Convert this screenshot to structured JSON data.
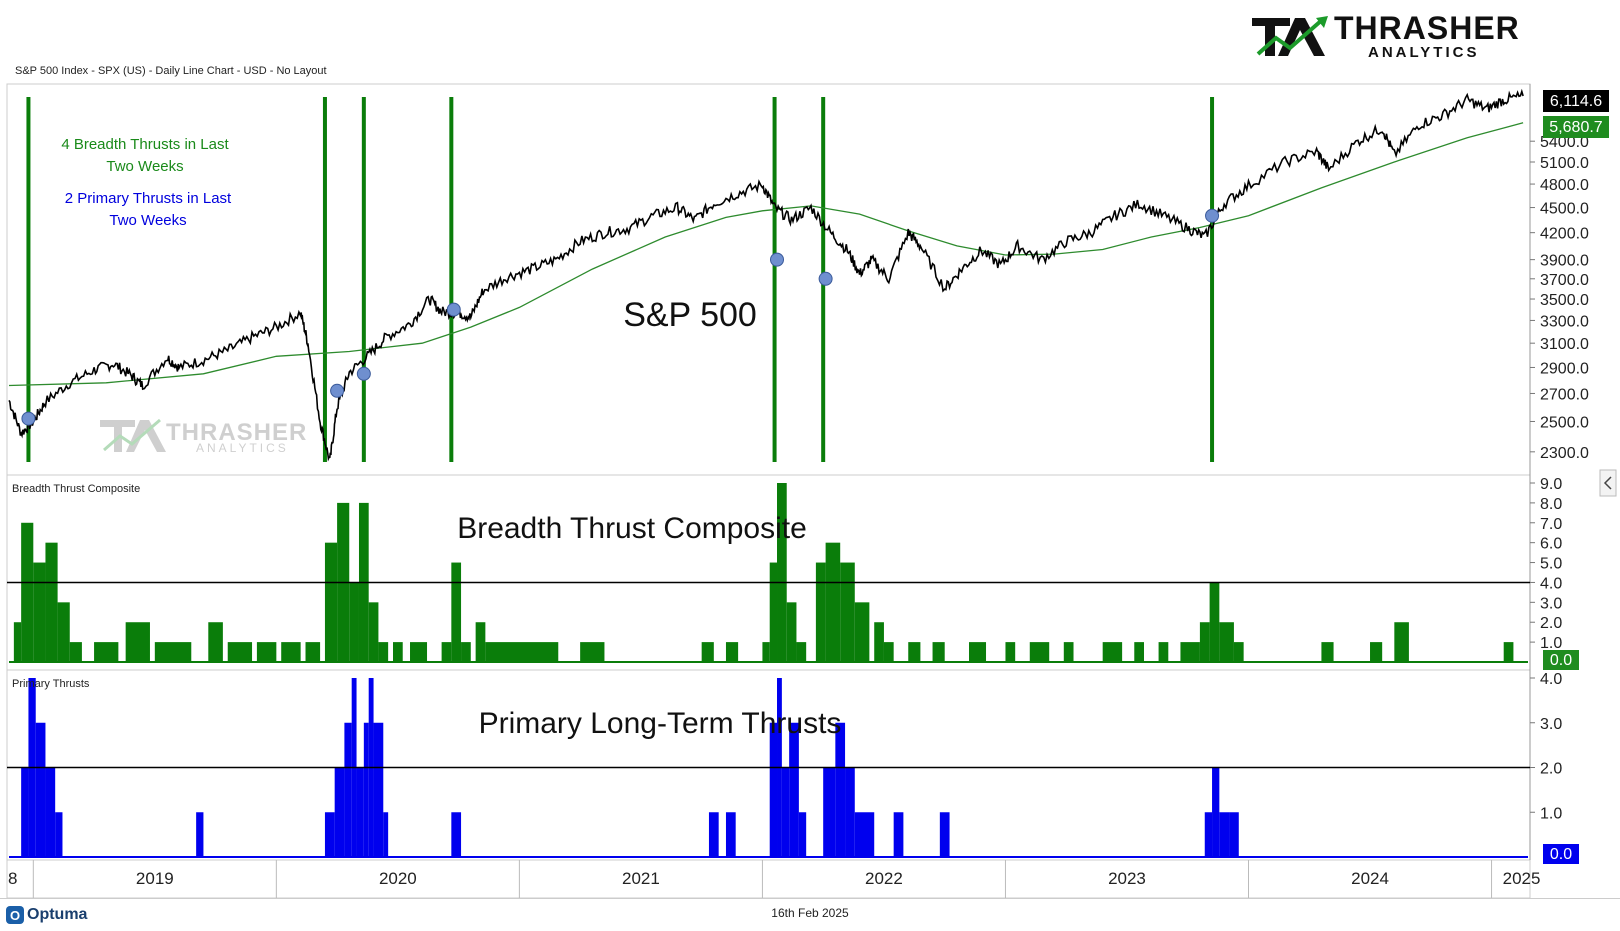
{
  "header": {
    "chart_caption": "S&P 500 Index - SPX (US) - Daily Line Chart - USD - No Layout",
    "logo_main": "THRASHER",
    "logo_sub": "ANALYTICS"
  },
  "footer": {
    "brand": "Optuma",
    "date": "16th Feb 2025"
  },
  "colors": {
    "price": "#000000",
    "ma": "#2e8b2e",
    "breadth": "#0a7d0a",
    "primary": "#0000ee",
    "thrust_line": "#0a7d0a",
    "marker": "#6f8fcf"
  },
  "chart_data": [
    {
      "type": "line",
      "panel": "S&P 500",
      "title": "S&P 500",
      "annotation_breadth": "4 Breadth Thrusts in Last Two Weeks",
      "annotation_primary": "2 Primary Thrusts in Last Two Weeks",
      "last_value": "6,114.6",
      "ma_value": "5,680.7",
      "yticks": [
        "5400.0",
        "5100.0",
        "4800.0",
        "4500.0",
        "4200.0",
        "3900.0",
        "3700.0",
        "3500.0",
        "3300.0",
        "3100.0",
        "2900.0",
        "2700.0",
        "2500.0",
        "2300.0"
      ],
      "ylim": [
        2200,
        6250
      ],
      "log_scale": true,
      "x_categories": [
        "2019",
        "2020",
        "2021",
        "2022",
        "2023",
        "2024",
        "2025"
      ],
      "price_series": [
        {
          "x": 2018.9,
          "y": 2650
        },
        {
          "x": 2018.95,
          "y": 2420
        },
        {
          "x": 2019.0,
          "y": 2500
        },
        {
          "x": 2019.05,
          "y": 2640
        },
        {
          "x": 2019.15,
          "y": 2780
        },
        {
          "x": 2019.25,
          "y": 2880
        },
        {
          "x": 2019.33,
          "y": 2930
        },
        {
          "x": 2019.4,
          "y": 2840
        },
        {
          "x": 2019.45,
          "y": 2760
        },
        {
          "x": 2019.55,
          "y": 2980
        },
        {
          "x": 2019.6,
          "y": 2900
        },
        {
          "x": 2019.7,
          "y": 2960
        },
        {
          "x": 2019.8,
          "y": 3040
        },
        {
          "x": 2019.9,
          "y": 3150
        },
        {
          "x": 2020.0,
          "y": 3240
        },
        {
          "x": 2020.1,
          "y": 3370
        },
        {
          "x": 2020.13,
          "y": 3100
        },
        {
          "x": 2020.18,
          "y": 2500
        },
        {
          "x": 2020.22,
          "y": 2240
        },
        {
          "x": 2020.25,
          "y": 2600
        },
        {
          "x": 2020.3,
          "y": 2860
        },
        {
          "x": 2020.38,
          "y": 3000
        },
        {
          "x": 2020.45,
          "y": 3150
        },
        {
          "x": 2020.55,
          "y": 3270
        },
        {
          "x": 2020.63,
          "y": 3500
        },
        {
          "x": 2020.68,
          "y": 3380
        },
        {
          "x": 2020.75,
          "y": 3370
        },
        {
          "x": 2020.8,
          "y": 3330
        },
        {
          "x": 2020.85,
          "y": 3580
        },
        {
          "x": 2020.95,
          "y": 3720
        },
        {
          "x": 2021.05,
          "y": 3800
        },
        {
          "x": 2021.15,
          "y": 3900
        },
        {
          "x": 2021.25,
          "y": 4100
        },
        {
          "x": 2021.35,
          "y": 4200
        },
        {
          "x": 2021.45,
          "y": 4250
        },
        {
          "x": 2021.55,
          "y": 4400
        },
        {
          "x": 2021.65,
          "y": 4500
        },
        {
          "x": 2021.72,
          "y": 4350
        },
        {
          "x": 2021.8,
          "y": 4550
        },
        {
          "x": 2021.9,
          "y": 4680
        },
        {
          "x": 2022.0,
          "y": 4790
        },
        {
          "x": 2022.05,
          "y": 4500
        },
        {
          "x": 2022.12,
          "y": 4350
        },
        {
          "x": 2022.2,
          "y": 4500
        },
        {
          "x": 2022.28,
          "y": 4200
        },
        {
          "x": 2022.35,
          "y": 4000
        },
        {
          "x": 2022.4,
          "y": 3750
        },
        {
          "x": 2022.45,
          "y": 3900
        },
        {
          "x": 2022.52,
          "y": 3700
        },
        {
          "x": 2022.6,
          "y": 4200
        },
        {
          "x": 2022.65,
          "y": 4050
        },
        {
          "x": 2022.75,
          "y": 3600
        },
        {
          "x": 2022.82,
          "y": 3800
        },
        {
          "x": 2022.9,
          "y": 4000
        },
        {
          "x": 2022.98,
          "y": 3840
        },
        {
          "x": 2023.05,
          "y": 4050
        },
        {
          "x": 2023.15,
          "y": 3900
        },
        {
          "x": 2023.25,
          "y": 4100
        },
        {
          "x": 2023.35,
          "y": 4200
        },
        {
          "x": 2023.45,
          "y": 4400
        },
        {
          "x": 2023.55,
          "y": 4550
        },
        {
          "x": 2023.65,
          "y": 4400
        },
        {
          "x": 2023.75,
          "y": 4250
        },
        {
          "x": 2023.82,
          "y": 4150
        },
        {
          "x": 2023.9,
          "y": 4550
        },
        {
          "x": 2024.0,
          "y": 4780
        },
        {
          "x": 2024.15,
          "y": 5100
        },
        {
          "x": 2024.28,
          "y": 5250
        },
        {
          "x": 2024.33,
          "y": 5000
        },
        {
          "x": 2024.45,
          "y": 5400
        },
        {
          "x": 2024.55,
          "y": 5600
        },
        {
          "x": 2024.6,
          "y": 5200
        },
        {
          "x": 2024.7,
          "y": 5650
        },
        {
          "x": 2024.8,
          "y": 5800
        },
        {
          "x": 2024.9,
          "y": 6050
        },
        {
          "x": 2024.98,
          "y": 5900
        },
        {
          "x": 2025.05,
          "y": 6050
        },
        {
          "x": 2025.13,
          "y": 6114.6
        }
      ],
      "ma_series": [
        {
          "x": 2018.9,
          "y": 2760
        },
        {
          "x": 2019.3,
          "y": 2780
        },
        {
          "x": 2019.7,
          "y": 2850
        },
        {
          "x": 2020.0,
          "y": 2990
        },
        {
          "x": 2020.3,
          "y": 3030
        },
        {
          "x": 2020.6,
          "y": 3100
        },
        {
          "x": 2020.8,
          "y": 3240
        },
        {
          "x": 2021.0,
          "y": 3420
        },
        {
          "x": 2021.3,
          "y": 3800
        },
        {
          "x": 2021.6,
          "y": 4150
        },
        {
          "x": 2021.85,
          "y": 4380
        },
        {
          "x": 2022.0,
          "y": 4460
        },
        {
          "x": 2022.2,
          "y": 4520
        },
        {
          "x": 2022.4,
          "y": 4420
        },
        {
          "x": 2022.6,
          "y": 4220
        },
        {
          "x": 2022.8,
          "y": 4050
        },
        {
          "x": 2023.0,
          "y": 3950
        },
        {
          "x": 2023.2,
          "y": 3960
        },
        {
          "x": 2023.4,
          "y": 4010
        },
        {
          "x": 2023.6,
          "y": 4150
        },
        {
          "x": 2023.8,
          "y": 4260
        },
        {
          "x": 2024.0,
          "y": 4400
        },
        {
          "x": 2024.3,
          "y": 4750
        },
        {
          "x": 2024.6,
          "y": 5100
        },
        {
          "x": 2024.9,
          "y": 5450
        },
        {
          "x": 2025.13,
          "y": 5680.7
        }
      ],
      "thrust_lines_x": [
        2018.98,
        2020.2,
        2020.36,
        2020.72,
        2022.05,
        2022.25,
        2023.85
      ],
      "markers": [
        {
          "x": 2018.98,
          "y": 2520
        },
        {
          "x": 2020.25,
          "y": 2720
        },
        {
          "x": 2020.36,
          "y": 2850
        },
        {
          "x": 2020.73,
          "y": 3400
        },
        {
          "x": 2022.06,
          "y": 3900
        },
        {
          "x": 2022.26,
          "y": 3700
        },
        {
          "x": 2023.85,
          "y": 4400
        }
      ]
    },
    {
      "type": "bar",
      "panel": "Breadth Thrust Composite",
      "title": "Breadth Thrust Composite",
      "caption": "Breadth Thrust Composite",
      "last_value": "0.0",
      "yticks": [
        "9.0",
        "8.0",
        "7.0",
        "6.0",
        "5.0",
        "4.0",
        "3.0",
        "2.0",
        "1.0"
      ],
      "ylim": [
        0,
        9
      ],
      "threshold": 4.0,
      "bars": [
        {
          "x0": 2018.92,
          "x1": 2018.95,
          "y": 2
        },
        {
          "x0": 2018.95,
          "x1": 2019.0,
          "y": 7
        },
        {
          "x0": 2019.0,
          "x1": 2019.05,
          "y": 5
        },
        {
          "x0": 2019.05,
          "x1": 2019.1,
          "y": 6
        },
        {
          "x0": 2019.1,
          "x1": 2019.15,
          "y": 3
        },
        {
          "x0": 2019.15,
          "x1": 2019.2,
          "y": 1
        },
        {
          "x0": 2019.25,
          "x1": 2019.35,
          "y": 1
        },
        {
          "x0": 2019.38,
          "x1": 2019.48,
          "y": 2
        },
        {
          "x0": 2019.5,
          "x1": 2019.65,
          "y": 1
        },
        {
          "x0": 2019.72,
          "x1": 2019.78,
          "y": 2
        },
        {
          "x0": 2019.8,
          "x1": 2019.9,
          "y": 1
        },
        {
          "x0": 2019.92,
          "x1": 2020.0,
          "y": 1
        },
        {
          "x0": 2020.02,
          "x1": 2020.1,
          "y": 1
        },
        {
          "x0": 2020.12,
          "x1": 2020.18,
          "y": 1
        },
        {
          "x0": 2020.2,
          "x1": 2020.25,
          "y": 6
        },
        {
          "x0": 2020.25,
          "x1": 2020.3,
          "y": 8
        },
        {
          "x0": 2020.3,
          "x1": 2020.34,
          "y": 4
        },
        {
          "x0": 2020.34,
          "x1": 2020.38,
          "y": 8
        },
        {
          "x0": 2020.38,
          "x1": 2020.42,
          "y": 3
        },
        {
          "x0": 2020.42,
          "x1": 2020.46,
          "y": 1
        },
        {
          "x0": 2020.48,
          "x1": 2020.52,
          "y": 1
        },
        {
          "x0": 2020.55,
          "x1": 2020.62,
          "y": 1
        },
        {
          "x0": 2020.68,
          "x1": 2020.72,
          "y": 1
        },
        {
          "x0": 2020.72,
          "x1": 2020.76,
          "y": 5
        },
        {
          "x0": 2020.76,
          "x1": 2020.8,
          "y": 1
        },
        {
          "x0": 2020.82,
          "x1": 2020.86,
          "y": 2
        },
        {
          "x0": 2020.86,
          "x1": 2021.16,
          "y": 1
        },
        {
          "x0": 2021.25,
          "x1": 2021.35,
          "y": 1
        },
        {
          "x0": 2021.75,
          "x1": 2021.8,
          "y": 1
        },
        {
          "x0": 2021.85,
          "x1": 2021.9,
          "y": 1
        },
        {
          "x0": 2022.0,
          "x1": 2022.03,
          "y": 1
        },
        {
          "x0": 2022.03,
          "x1": 2022.06,
          "y": 5
        },
        {
          "x0": 2022.06,
          "x1": 2022.1,
          "y": 9
        },
        {
          "x0": 2022.1,
          "x1": 2022.14,
          "y": 3
        },
        {
          "x0": 2022.14,
          "x1": 2022.18,
          "y": 1
        },
        {
          "x0": 2022.22,
          "x1": 2022.26,
          "y": 5
        },
        {
          "x0": 2022.26,
          "x1": 2022.32,
          "y": 6
        },
        {
          "x0": 2022.32,
          "x1": 2022.38,
          "y": 5
        },
        {
          "x0": 2022.38,
          "x1": 2022.44,
          "y": 3
        },
        {
          "x0": 2022.46,
          "x1": 2022.5,
          "y": 2
        },
        {
          "x0": 2022.5,
          "x1": 2022.54,
          "y": 1
        },
        {
          "x0": 2022.6,
          "x1": 2022.65,
          "y": 1
        },
        {
          "x0": 2022.7,
          "x1": 2022.75,
          "y": 1
        },
        {
          "x0": 2022.85,
          "x1": 2022.92,
          "y": 1
        },
        {
          "x0": 2023.0,
          "x1": 2023.04,
          "y": 1
        },
        {
          "x0": 2023.1,
          "x1": 2023.18,
          "y": 1
        },
        {
          "x0": 2023.24,
          "x1": 2023.28,
          "y": 1
        },
        {
          "x0": 2023.4,
          "x1": 2023.48,
          "y": 1
        },
        {
          "x0": 2023.53,
          "x1": 2023.57,
          "y": 1
        },
        {
          "x0": 2023.63,
          "x1": 2023.67,
          "y": 1
        },
        {
          "x0": 2023.72,
          "x1": 2023.8,
          "y": 1
        },
        {
          "x0": 2023.8,
          "x1": 2023.84,
          "y": 2
        },
        {
          "x0": 2023.84,
          "x1": 2023.88,
          "y": 4
        },
        {
          "x0": 2023.88,
          "x1": 2023.94,
          "y": 2
        },
        {
          "x0": 2023.94,
          "x1": 2023.98,
          "y": 1
        },
        {
          "x0": 2024.3,
          "x1": 2024.35,
          "y": 1
        },
        {
          "x0": 2024.5,
          "x1": 2024.55,
          "y": 1
        },
        {
          "x0": 2024.6,
          "x1": 2024.66,
          "y": 2
        },
        {
          "x0": 2025.05,
          "x1": 2025.09,
          "y": 1
        }
      ]
    },
    {
      "type": "bar",
      "panel": "Primary Thrusts",
      "title": "Primary Long-Term Thrusts",
      "caption": "Primary Thrusts",
      "last_value": "0.0",
      "yticks": [
        "4.0",
        "3.0",
        "2.0",
        "1.0"
      ],
      "ylim": [
        0,
        4
      ],
      "threshold": 2.0,
      "bars": [
        {
          "x0": 2018.95,
          "x1": 2018.98,
          "y": 2
        },
        {
          "x0": 2018.98,
          "x1": 2019.01,
          "y": 4
        },
        {
          "x0": 2019.01,
          "x1": 2019.05,
          "y": 3
        },
        {
          "x0": 2019.05,
          "x1": 2019.09,
          "y": 2
        },
        {
          "x0": 2019.09,
          "x1": 2019.12,
          "y": 1
        },
        {
          "x0": 2019.67,
          "x1": 2019.7,
          "y": 1
        },
        {
          "x0": 2020.2,
          "x1": 2020.24,
          "y": 1
        },
        {
          "x0": 2020.24,
          "x1": 2020.28,
          "y": 2
        },
        {
          "x0": 2020.28,
          "x1": 2020.31,
          "y": 3
        },
        {
          "x0": 2020.31,
          "x1": 2020.33,
          "y": 4
        },
        {
          "x0": 2020.33,
          "x1": 2020.36,
          "y": 2
        },
        {
          "x0": 2020.36,
          "x1": 2020.38,
          "y": 3
        },
        {
          "x0": 2020.38,
          "x1": 2020.4,
          "y": 4
        },
        {
          "x0": 2020.4,
          "x1": 2020.44,
          "y": 3
        },
        {
          "x0": 2020.44,
          "x1": 2020.46,
          "y": 1
        },
        {
          "x0": 2020.72,
          "x1": 2020.76,
          "y": 1
        },
        {
          "x0": 2022.73,
          "x1": 2022.77,
          "y": 1
        },
        {
          "x0": 2021.78,
          "x1": 2021.82,
          "y": 1
        },
        {
          "x0": 2021.85,
          "x1": 2021.89,
          "y": 1
        },
        {
          "x0": 2022.03,
          "x1": 2022.06,
          "y": 3
        },
        {
          "x0": 2022.06,
          "x1": 2022.08,
          "y": 4
        },
        {
          "x0": 2022.08,
          "x1": 2022.11,
          "y": 2
        },
        {
          "x0": 2022.11,
          "x1": 2022.15,
          "y": 3
        },
        {
          "x0": 2022.15,
          "x1": 2022.18,
          "y": 1
        },
        {
          "x0": 2022.25,
          "x1": 2022.3,
          "y": 2
        },
        {
          "x0": 2022.3,
          "x1": 2022.34,
          "y": 3
        },
        {
          "x0": 2022.34,
          "x1": 2022.38,
          "y": 2
        },
        {
          "x0": 2022.38,
          "x1": 2022.42,
          "y": 1
        },
        {
          "x0": 2022.42,
          "x1": 2022.46,
          "y": 1
        },
        {
          "x0": 2022.54,
          "x1": 2022.58,
          "y": 1
        },
        {
          "x0": 2023.82,
          "x1": 2023.85,
          "y": 1
        },
        {
          "x0": 2023.85,
          "x1": 2023.88,
          "y": 2
        },
        {
          "x0": 2023.88,
          "x1": 2023.92,
          "y": 1
        },
        {
          "x0": 2023.92,
          "x1": 2023.96,
          "y": 1
        }
      ]
    }
  ],
  "xaxis": {
    "left_fragment": "8",
    "labels": [
      "2019",
      "2020",
      "2021",
      "2022",
      "2023",
      "2024",
      "2025"
    ]
  }
}
